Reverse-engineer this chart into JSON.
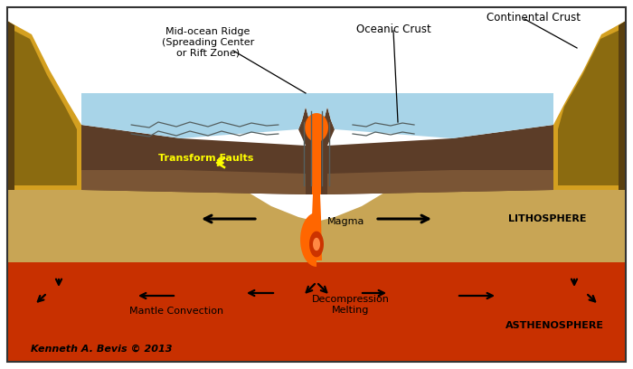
{
  "background": "#ffffff",
  "water": "#a8d4e8",
  "oceanic_crust": "#5c3d28",
  "oceanic_crust_bottom": "#7a5535",
  "lithosphere": "#c8a555",
  "lithosphere_dark": "#b89040",
  "asthenosphere": "#c83000",
  "asthenosphere_dark": "#a02000",
  "cont_yellow": "#d4a020",
  "cont_dark": "#8B6b10",
  "cont_edge": "#5a4010",
  "magma_bright": "#ff6600",
  "magma_dark": "#cc3300",
  "fault_color": "#556060",
  "arrow_color": "#111111",
  "labels": {
    "mid_ocean_ridge": "Mid-ocean Ridge\n(Spreading Center\nor Rift Zone)",
    "oceanic_crust": "Oceanic Crust",
    "continental_crust": "Continental Crust",
    "transform_faults": "Transform Faults",
    "magma": "Magma",
    "decompression": "Decompression\nMelting",
    "mantle_convection": "Mantle Convection",
    "lithosphere": "LITHOSPHERE",
    "asthenosphere": "ASTHENOSPHERE",
    "copyright": "Kenneth A. Bevis © 2013"
  }
}
